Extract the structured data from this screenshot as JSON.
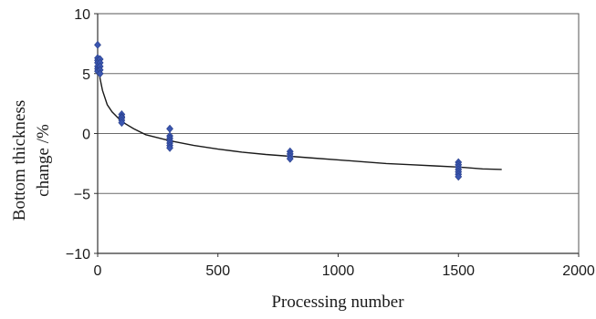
{
  "chart_data": {
    "type": "scatter",
    "title": "",
    "xlabel": "Processing number",
    "ylabel_lines": [
      "Bottom thickness",
      "change /%"
    ],
    "xlim": [
      0,
      2000
    ],
    "ylim": [
      -10,
      10
    ],
    "x_ticks": [
      0,
      500,
      1000,
      1500,
      2000
    ],
    "y_ticks": [
      -10,
      -5,
      0,
      5,
      10
    ],
    "x_tick_labels": [
      "0",
      "500",
      "1000",
      "1500",
      "2000"
    ],
    "y_tick_labels": [
      "−10",
      "−5",
      "0",
      "5",
      "10"
    ],
    "grid": "horizontal",
    "series": [
      {
        "kind": "points",
        "color": "#3a56b0",
        "points": [
          [
            0,
            7.4
          ],
          [
            0,
            6.3
          ],
          [
            0,
            6.1
          ],
          [
            0,
            5.9
          ],
          [
            0,
            5.6
          ],
          [
            0,
            5.4
          ],
          [
            0,
            5.2
          ],
          [
            10,
            6.2
          ],
          [
            10,
            5.9
          ],
          [
            10,
            5.6
          ],
          [
            10,
            5.3
          ],
          [
            10,
            5.0
          ],
          [
            100,
            1.6
          ],
          [
            100,
            1.4
          ],
          [
            100,
            1.3
          ],
          [
            100,
            1.1
          ],
          [
            100,
            0.9
          ],
          [
            300,
            0.4
          ],
          [
            300,
            -0.2
          ],
          [
            300,
            -0.4
          ],
          [
            300,
            -0.6
          ],
          [
            300,
            -0.8
          ],
          [
            300,
            -1.0
          ],
          [
            300,
            -1.2
          ],
          [
            800,
            -1.5
          ],
          [
            800,
            -1.7
          ],
          [
            800,
            -1.9
          ],
          [
            800,
            -2.1
          ],
          [
            1500,
            -2.4
          ],
          [
            1500,
            -2.6
          ],
          [
            1500,
            -2.8
          ],
          [
            1500,
            -3.0
          ],
          [
            1500,
            -3.2
          ],
          [
            1500,
            -3.4
          ],
          [
            1500,
            -3.6
          ]
        ]
      },
      {
        "kind": "trend",
        "color": "#1a1a1a",
        "points": [
          [
            3,
            6.5
          ],
          [
            10,
            4.6
          ],
          [
            20,
            3.6
          ],
          [
            40,
            2.4
          ],
          [
            60,
            1.8
          ],
          [
            100,
            1.0
          ],
          [
            150,
            0.4
          ],
          [
            200,
            -0.1
          ],
          [
            300,
            -0.6
          ],
          [
            400,
            -1.0
          ],
          [
            500,
            -1.3
          ],
          [
            600,
            -1.55
          ],
          [
            700,
            -1.75
          ],
          [
            800,
            -1.9
          ],
          [
            900,
            -2.05
          ],
          [
            1000,
            -2.2
          ],
          [
            1100,
            -2.35
          ],
          [
            1200,
            -2.5
          ],
          [
            1300,
            -2.6
          ],
          [
            1400,
            -2.7
          ],
          [
            1500,
            -2.8
          ],
          [
            1600,
            -2.95
          ],
          [
            1680,
            -3.0
          ]
        ]
      }
    ]
  }
}
